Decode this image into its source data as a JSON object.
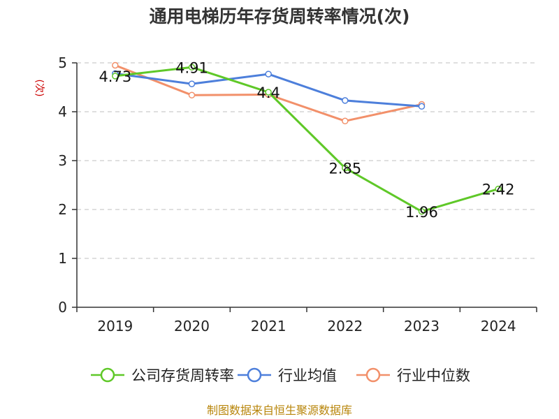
{
  "title": "通用电梯历年存货周转率情况(次)",
  "source": "制图数据来自恒生聚源数据库",
  "colors": {
    "ylabel": "#cc0000",
    "axis": "#333333",
    "grid": "#cccccc"
  },
  "chart_data": {
    "type": "line",
    "title": "通用电梯历年存货周转率情况(次)",
    "xlabel": "",
    "ylabel": "(次)",
    "categories": [
      "2019",
      "2020",
      "2021",
      "2022",
      "2023",
      "2024"
    ],
    "ylim": [
      0,
      5
    ],
    "yticks": [
      0,
      1,
      2,
      3,
      4,
      5
    ],
    "grid": true,
    "legend_position": "bottom",
    "series": [
      {
        "name": "公司存货周转率",
        "color": "#5fc828",
        "values": [
          4.73,
          4.91,
          4.4,
          2.85,
          1.96,
          2.42
        ],
        "labels": [
          "4.73",
          "4.91",
          "4.4",
          "2.85",
          "1.96",
          "2.42"
        ],
        "show_labels": true
      },
      {
        "name": "行业均值",
        "color": "#4d7fdb",
        "values": [
          4.78,
          4.57,
          4.77,
          4.23,
          4.11,
          null
        ],
        "show_labels": false
      },
      {
        "name": "行业中位数",
        "color": "#f2906a",
        "values": [
          4.95,
          4.34,
          4.35,
          3.81,
          4.15,
          null
        ],
        "show_labels": false
      }
    ]
  }
}
